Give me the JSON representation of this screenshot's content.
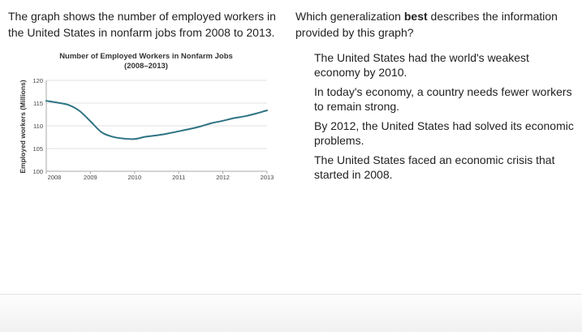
{
  "passage": {
    "text": "The graph shows the number of employed workers in the United States in nonfarm jobs from 2008 to 2013."
  },
  "question": {
    "prefix": "Which generalization ",
    "emphasis": "best",
    "suffix": " describes the information provided by this graph?"
  },
  "choices": [
    {
      "text": "The United States had the world's weakest economy by 2010."
    },
    {
      "text": "In today's economy, a country needs fewer workers to remain strong."
    },
    {
      "text": "By 2012, the United States had solved its economic problems."
    },
    {
      "text": "The United States faced an economic crisis that started in 2008."
    }
  ],
  "colors": {
    "line": "#2e7383",
    "grid": "#e2e2e2",
    "axis": "#aaaaaa"
  },
  "chart_data": {
    "type": "line",
    "title": "Number of Employed Workers in Nonfarm Jobs",
    "subtitle": "(2008–2013)",
    "xlabel": "",
    "ylabel": "Employed workers (Millions)",
    "x_ticks": [
      "2008",
      "2009",
      "2010",
      "2011",
      "2012",
      "2013"
    ],
    "y_ticks": [
      "100",
      "105",
      "110",
      "115",
      "120"
    ],
    "xlim": [
      2008,
      2013
    ],
    "ylim": [
      100,
      120
    ],
    "grid": true,
    "series": [
      {
        "name": "Employed workers",
        "x": [
          2008.0,
          2008.25,
          2008.5,
          2008.75,
          2009.0,
          2009.25,
          2009.5,
          2009.75,
          2010.0,
          2010.25,
          2010.5,
          2010.75,
          2011.0,
          2011.25,
          2011.5,
          2011.75,
          2012.0,
          2012.25,
          2012.5,
          2012.75,
          2013.0
        ],
        "values": [
          115.5,
          115.1,
          114.6,
          113.3,
          111.0,
          108.6,
          107.6,
          107.2,
          107.1,
          107.6,
          107.9,
          108.3,
          108.8,
          109.3,
          109.9,
          110.6,
          111.1,
          111.7,
          112.1,
          112.7,
          113.4
        ]
      }
    ]
  }
}
